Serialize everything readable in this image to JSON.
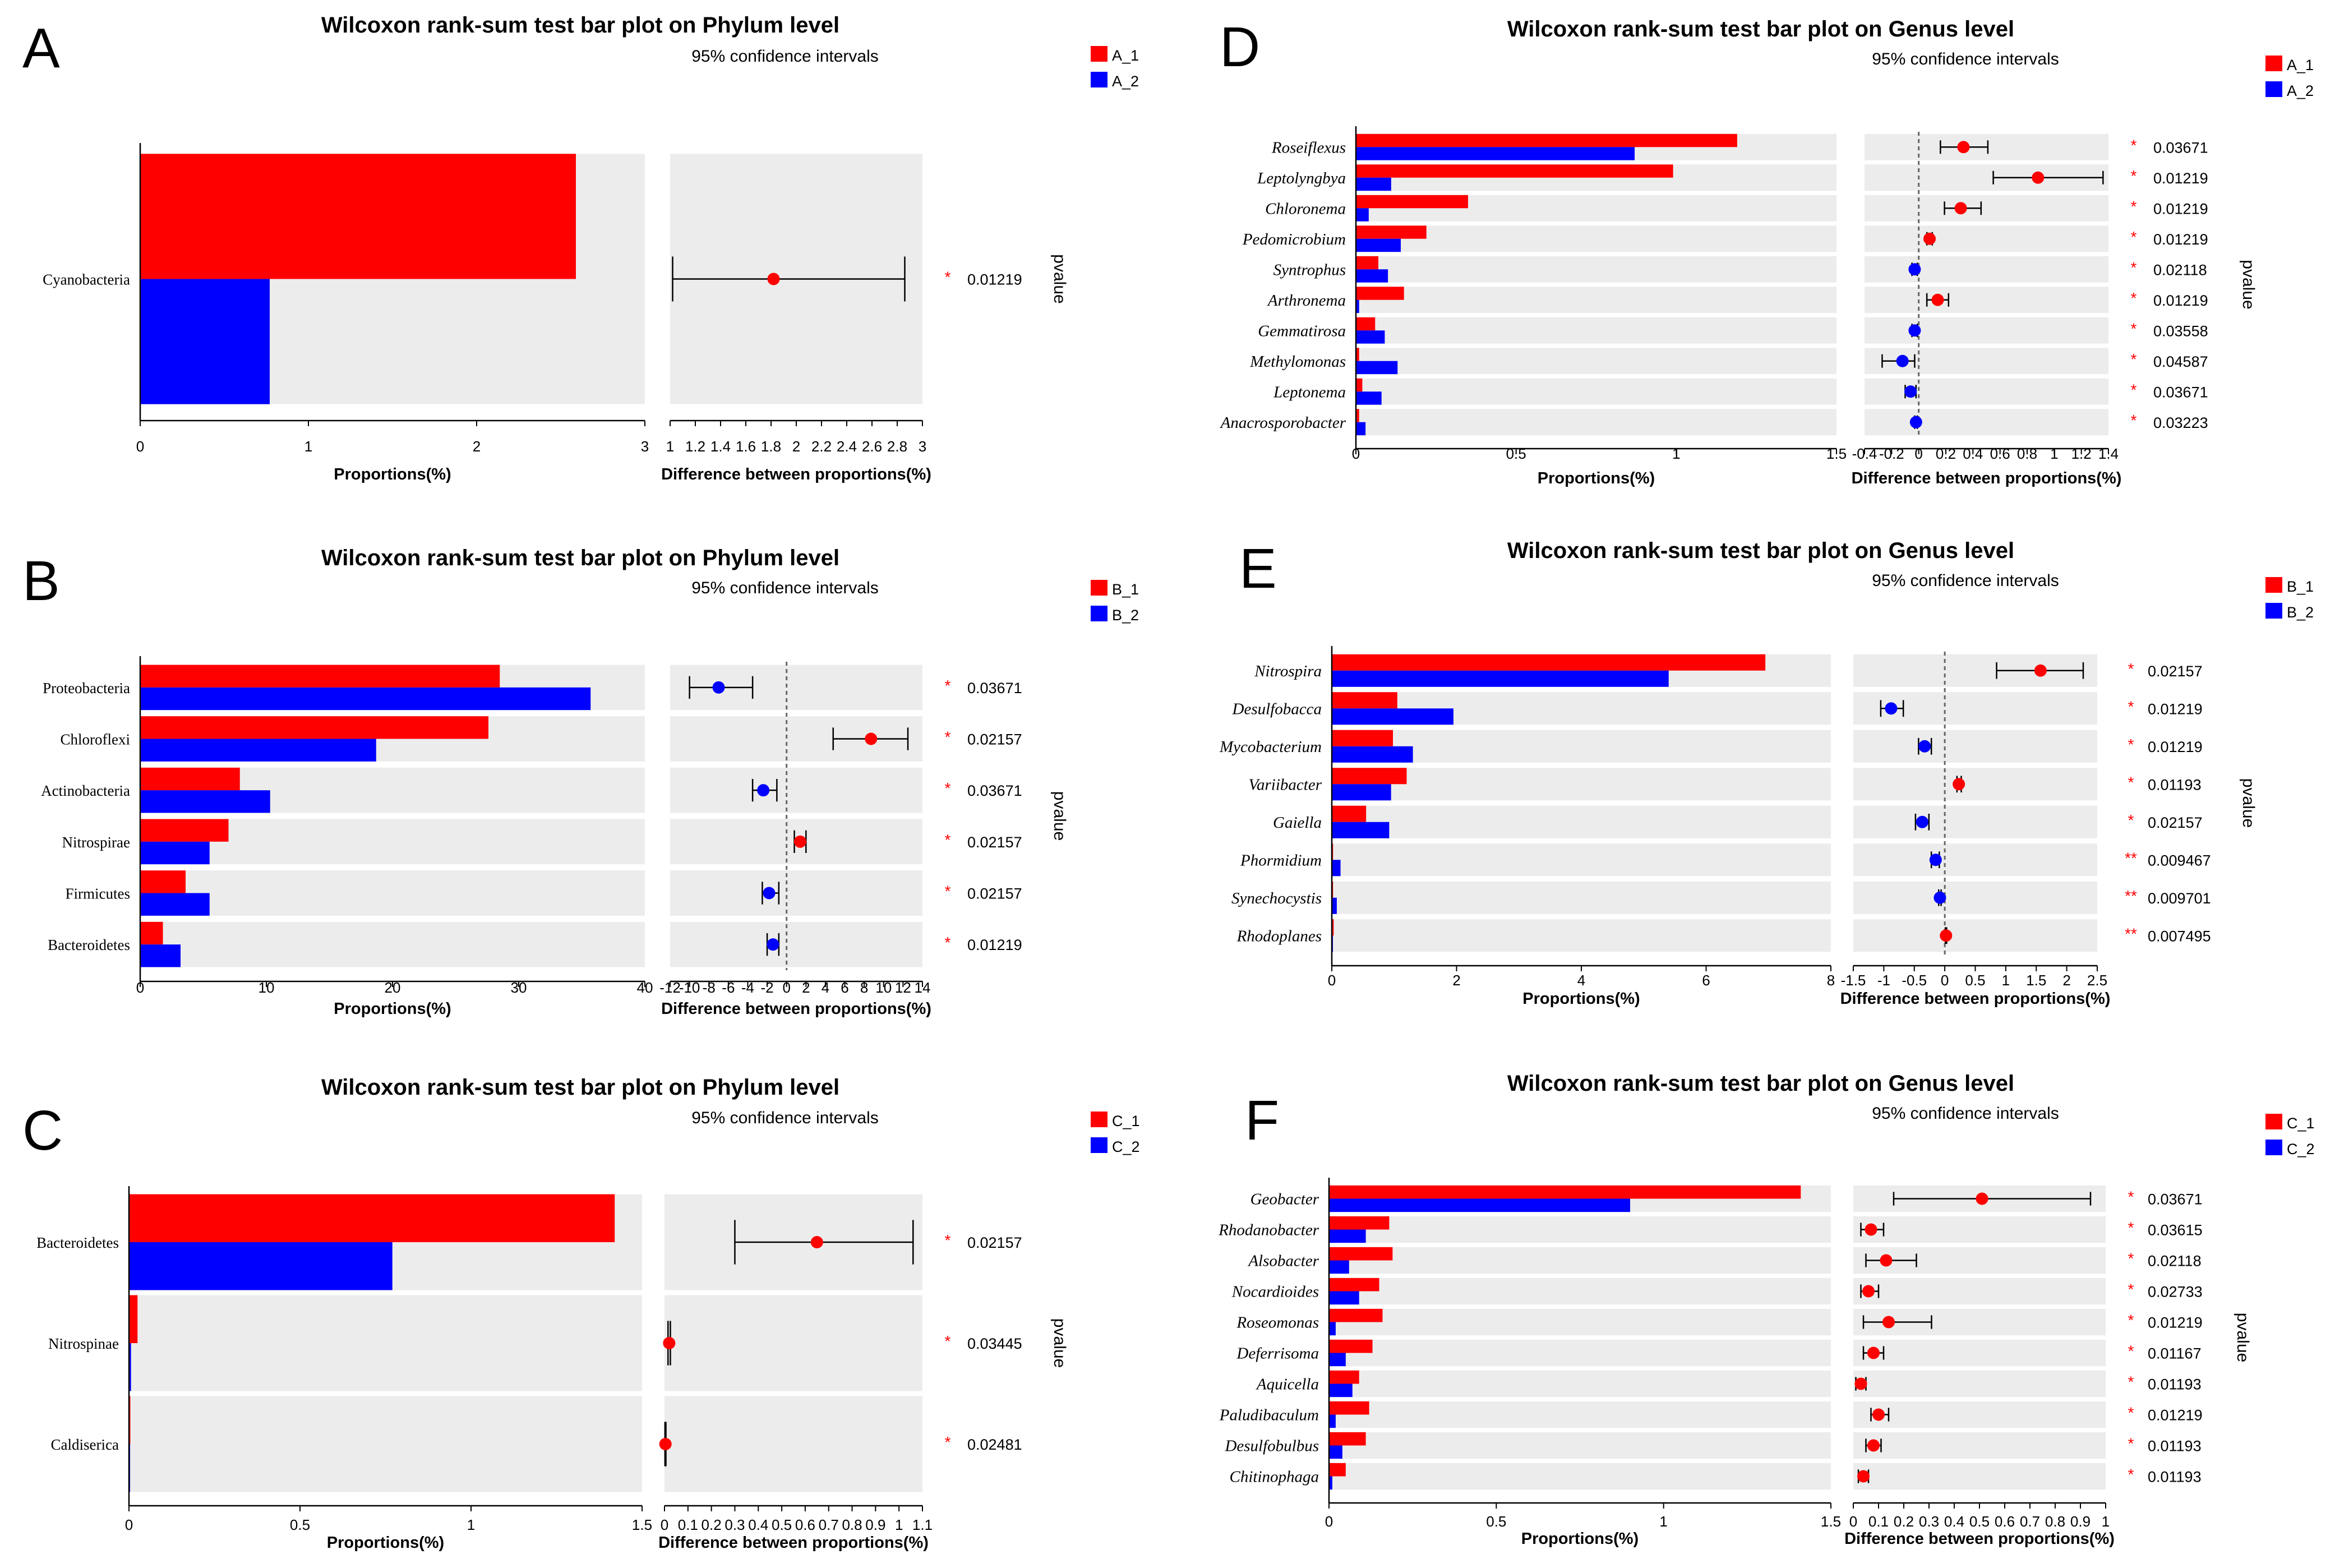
{
  "chart_data": [
    {
      "type": "bar",
      "panel_label": "A",
      "title": "Wilcoxon rank-sum test bar plot on Phylum level",
      "subtitle": "95% confidence intervals",
      "italic_taxa": false,
      "categories": [
        "Cyanobacteria"
      ],
      "series": [
        {
          "name": "A_1",
          "color": "#ff0000",
          "values": [
            2.59
          ]
        },
        {
          "name": "A_2",
          "color": "#0000ff",
          "values": [
            0.77
          ]
        }
      ],
      "xlabel": "Proportions(%)",
      "xlim": [
        0,
        3
      ],
      "xticks": [
        "0",
        "1",
        "2",
        "3"
      ],
      "diff": {
        "xlabel": "Difference between proportions(%)",
        "xlim": [
          1,
          3
        ],
        "xticks": [
          "1",
          "1.2",
          "1.4",
          "1.6",
          "1.8",
          "2",
          "2.2",
          "2.4",
          "2.6",
          "2.8",
          "3"
        ],
        "zero_line": false,
        "points": [
          {
            "estimate": 1.82,
            "lower": 1.02,
            "upper": 2.86,
            "group": "A_1"
          }
        ]
      },
      "pvalues": [
        "0.01219"
      ],
      "stars": [
        "*"
      ],
      "pvalue_label": "pvalue"
    },
    {
      "type": "bar",
      "panel_label": "B",
      "title": "Wilcoxon rank-sum test bar plot on Phylum level",
      "subtitle": "95% confidence intervals",
      "italic_taxa": false,
      "categories": [
        "Proteobacteria",
        "Chloroflexi",
        "Actinobacteria",
        "Nitrospirae",
        "Firmicutes",
        "Bacteroidetes"
      ],
      "series": [
        {
          "name": "B_1",
          "color": "#ff0000",
          "values": [
            28.5,
            27.6,
            7.9,
            7.0,
            3.6,
            1.8
          ]
        },
        {
          "name": "B_2",
          "color": "#0000ff",
          "values": [
            35.7,
            18.7,
            10.3,
            5.5,
            5.5,
            3.2
          ]
        }
      ],
      "xlabel": "Proportions(%)",
      "xlim": [
        0,
        40
      ],
      "xticks": [
        "0",
        "10",
        "20",
        "30",
        "40"
      ],
      "diff": {
        "xlabel": "Difference between proportions(%)",
        "xlim": [
          -12,
          14
        ],
        "xticks": [
          "-12",
          "-10",
          "-8",
          "-6",
          "-4",
          "-2",
          "0",
          "2",
          "4",
          "6",
          "8",
          "10",
          "12",
          "14"
        ],
        "zero_line": true,
        "points": [
          {
            "estimate": -7.0,
            "lower": -10.0,
            "upper": -3.5,
            "group": "B_2"
          },
          {
            "estimate": 8.7,
            "lower": 4.8,
            "upper": 12.5,
            "group": "B_1"
          },
          {
            "estimate": -2.4,
            "lower": -3.5,
            "upper": -1.0,
            "group": "B_2"
          },
          {
            "estimate": 1.4,
            "lower": 0.8,
            "upper": 2.0,
            "group": "B_1"
          },
          {
            "estimate": -1.8,
            "lower": -2.5,
            "upper": -0.8,
            "group": "B_2"
          },
          {
            "estimate": -1.4,
            "lower": -2.0,
            "upper": -0.8,
            "group": "B_2"
          }
        ]
      },
      "pvalues": [
        "0.03671",
        "0.02157",
        "0.03671",
        "0.02157",
        "0.02157",
        "0.01219"
      ],
      "stars": [
        "*",
        "*",
        "*",
        "*",
        "*",
        "*"
      ],
      "pvalue_label": "pvalue"
    },
    {
      "type": "bar",
      "panel_label": "C",
      "title": "Wilcoxon rank-sum test bar plot on Phylum level",
      "subtitle": "95% confidence intervals",
      "italic_taxa": false,
      "categories": [
        "Bacteroidetes",
        "Nitrospinae",
        "Caldiserica"
      ],
      "series": [
        {
          "name": "C_1",
          "color": "#ff0000",
          "values": [
            1.42,
            0.025,
            0.004
          ]
        },
        {
          "name": "C_2",
          "color": "#0000ff",
          "values": [
            0.77,
            0.006,
            0.001
          ]
        }
      ],
      "xlabel": "Proportions(%)",
      "xlim": [
        0,
        1.5
      ],
      "xticks": [
        "0",
        "0.5",
        "1",
        "1.5"
      ],
      "diff": {
        "xlabel": "Difference between proportions(%)",
        "xlim": [
          0,
          1.1
        ],
        "xticks": [
          "0",
          "0.1",
          "0.2",
          "0.3",
          "0.4",
          "0.5",
          "0.6",
          "0.7",
          "0.8",
          "0.9",
          "1",
          "1.1"
        ],
        "zero_line": false,
        "points": [
          {
            "estimate": 0.65,
            "lower": 0.3,
            "upper": 1.06,
            "group": "C_1"
          },
          {
            "estimate": 0.02,
            "lower": 0.015,
            "upper": 0.025,
            "group": "C_1"
          },
          {
            "estimate": 0.004,
            "lower": 0.002,
            "upper": 0.006,
            "group": "C_1"
          }
        ]
      },
      "pvalues": [
        "0.02157",
        "0.03445",
        "0.02481"
      ],
      "stars": [
        "*",
        "*",
        "*"
      ],
      "pvalue_label": "pvalue"
    },
    {
      "type": "bar",
      "panel_label": "D",
      "title": "Wilcoxon rank-sum test bar plot on Genus level",
      "subtitle": "95% confidence intervals",
      "italic_taxa": true,
      "categories": [
        "Roseiflexus",
        "Leptolyngbya",
        "Chloronema",
        "Pedomicrobium",
        "Syntrophus",
        "Arthronema",
        "Gemmatirosa",
        "Methylomonas",
        "Leptonema",
        "Anacrosporobacter"
      ],
      "series": [
        {
          "name": "A_1",
          "color": "#ff0000",
          "values": [
            1.19,
            0.99,
            0.35,
            0.22,
            0.07,
            0.15,
            0.06,
            0.01,
            0.02,
            0.01
          ]
        },
        {
          "name": "A_2",
          "color": "#0000ff",
          "values": [
            0.87,
            0.11,
            0.04,
            0.14,
            0.1,
            0.01,
            0.09,
            0.13,
            0.08,
            0.03
          ]
        }
      ],
      "xlabel": "Proportions(%)",
      "xlim": [
        0,
        1.5
      ],
      "xticks": [
        "0",
        "0.5",
        "1",
        "1.5"
      ],
      "diff": {
        "xlabel": "Difference between proportions(%)",
        "xlim": [
          -0.4,
          1.4
        ],
        "xticks": [
          "-0.4",
          "-0.2",
          "0",
          "0.2",
          "0.4",
          "0.6",
          "0.8",
          "1",
          "1.2",
          "1.4"
        ],
        "zero_line": true,
        "points": [
          {
            "estimate": 0.33,
            "lower": 0.16,
            "upper": 0.51,
            "group": "A_1"
          },
          {
            "estimate": 0.88,
            "lower": 0.55,
            "upper": 1.36,
            "group": "A_1"
          },
          {
            "estimate": 0.31,
            "lower": 0.19,
            "upper": 0.46,
            "group": "A_1"
          },
          {
            "estimate": 0.08,
            "lower": 0.06,
            "upper": 0.1,
            "group": "A_1"
          },
          {
            "estimate": -0.03,
            "lower": -0.05,
            "upper": -0.01,
            "group": "A_2"
          },
          {
            "estimate": 0.14,
            "lower": 0.06,
            "upper": 0.22,
            "group": "A_1"
          },
          {
            "estimate": -0.03,
            "lower": -0.05,
            "upper": -0.01,
            "group": "A_2"
          },
          {
            "estimate": -0.12,
            "lower": -0.27,
            "upper": -0.03,
            "group": "A_2"
          },
          {
            "estimate": -0.06,
            "lower": -0.1,
            "upper": -0.02,
            "group": "A_2"
          },
          {
            "estimate": -0.02,
            "lower": -0.03,
            "upper": -0.01,
            "group": "A_2"
          }
        ]
      },
      "pvalues": [
        "0.03671",
        "0.01219",
        "0.01219",
        "0.01219",
        "0.02118",
        "0.01219",
        "0.03558",
        "0.04587",
        "0.03671",
        "0.03223"
      ],
      "stars": [
        "*",
        "*",
        "*",
        "*",
        "*",
        "*",
        "*",
        "*",
        "*",
        "*"
      ],
      "pvalue_label": "pvalue"
    },
    {
      "type": "bar",
      "panel_label": "E",
      "title": "Wilcoxon rank-sum test bar plot on Genus level",
      "subtitle": "95% confidence intervals",
      "italic_taxa": true,
      "categories": [
        "Nitrospira",
        "Desulfobacca",
        "Mycobacterium",
        "Variibacter",
        "Gaiella",
        "Phormidium",
        "Synechocystis",
        "Rhodoplanes"
      ],
      "series": [
        {
          "name": "B_1",
          "color": "#ff0000",
          "values": [
            6.95,
            1.05,
            0.98,
            1.2,
            0.55,
            0.02,
            0.02,
            0.03
          ]
        },
        {
          "name": "B_2",
          "color": "#0000ff",
          "values": [
            5.4,
            1.95,
            1.3,
            0.95,
            0.92,
            0.14,
            0.08,
            0.01
          ]
        }
      ],
      "xlabel": "Proportions(%)",
      "xlim": [
        0,
        8
      ],
      "xticks": [
        "0",
        "2",
        "4",
        "6",
        "8"
      ],
      "diff": {
        "xlabel": "Difference between proportions(%)",
        "xlim": [
          -1.5,
          2.5
        ],
        "xticks": [
          "-1.5",
          "-1",
          "-0.5",
          "0",
          "0.5",
          "1",
          "1.5",
          "2",
          "2.5"
        ],
        "zero_line": true,
        "points": [
          {
            "estimate": 1.57,
            "lower": 0.85,
            "upper": 2.27,
            "group": "B_1"
          },
          {
            "estimate": -0.88,
            "lower": -1.05,
            "upper": -0.68,
            "group": "B_2"
          },
          {
            "estimate": -0.33,
            "lower": -0.43,
            "upper": -0.22,
            "group": "B_2"
          },
          {
            "estimate": 0.23,
            "lower": 0.2,
            "upper": 0.27,
            "group": "B_1"
          },
          {
            "estimate": -0.37,
            "lower": -0.48,
            "upper": -0.26,
            "group": "B_2"
          },
          {
            "estimate": -0.15,
            "lower": -0.22,
            "upper": -0.09,
            "group": "B_2"
          },
          {
            "estimate": -0.08,
            "lower": -0.1,
            "upper": -0.06,
            "group": "B_2"
          },
          {
            "estimate": 0.02,
            "lower": 0.01,
            "upper": 0.03,
            "group": "B_1"
          }
        ]
      },
      "pvalues": [
        "0.02157",
        "0.01219",
        "0.01219",
        "0.01193",
        "0.02157",
        "0.009467",
        "0.009701",
        "0.007495"
      ],
      "stars": [
        "*",
        "*",
        "*",
        "*",
        "*",
        "**",
        "**",
        "**"
      ],
      "pvalue_label": "pvalue"
    },
    {
      "type": "bar",
      "panel_label": "F",
      "title": "Wilcoxon rank-sum test bar plot on Genus level",
      "subtitle": "95% confidence intervals",
      "italic_taxa": true,
      "categories": [
        "Geobacter",
        "Rhodanobacter",
        "Alsobacter",
        "Nocardioides",
        "Roseomonas",
        "Deferrisoma",
        "Aquicella",
        "Paludibaculum",
        "Desulfobulbus",
        "Chitinophaga"
      ],
      "series": [
        {
          "name": "C_1",
          "color": "#ff0000",
          "values": [
            1.41,
            0.18,
            0.19,
            0.15,
            0.16,
            0.13,
            0.09,
            0.12,
            0.11,
            0.05
          ]
        },
        {
          "name": "C_2",
          "color": "#0000ff",
          "values": [
            0.9,
            0.11,
            0.06,
            0.09,
            0.02,
            0.05,
            0.07,
            0.02,
            0.04,
            0.01
          ]
        }
      ],
      "xlabel": "Proportions(%)",
      "xlim": [
        0,
        1.5
      ],
      "xticks": [
        "0",
        "0.5",
        "1",
        "1.5"
      ],
      "diff": {
        "xlabel": "Difference between proportions(%)",
        "xlim": [
          0,
          1
        ],
        "xticks": [
          "0",
          "0.1",
          "0.2",
          "0.3",
          "0.4",
          "0.5",
          "0.6",
          "0.7",
          "0.8",
          "0.9",
          "1"
        ],
        "zero_line": false,
        "points": [
          {
            "estimate": 0.51,
            "lower": 0.16,
            "upper": 0.94,
            "group": "C_1"
          },
          {
            "estimate": 0.07,
            "lower": 0.03,
            "upper": 0.12,
            "group": "C_1"
          },
          {
            "estimate": 0.13,
            "lower": 0.05,
            "upper": 0.25,
            "group": "C_1"
          },
          {
            "estimate": 0.06,
            "lower": 0.03,
            "upper": 0.1,
            "group": "C_1"
          },
          {
            "estimate": 0.14,
            "lower": 0.04,
            "upper": 0.31,
            "group": "C_1"
          },
          {
            "estimate": 0.08,
            "lower": 0.04,
            "upper": 0.12,
            "group": "C_1"
          },
          {
            "estimate": 0.03,
            "lower": 0.01,
            "upper": 0.05,
            "group": "C_1"
          },
          {
            "estimate": 0.1,
            "lower": 0.07,
            "upper": 0.14,
            "group": "C_1"
          },
          {
            "estimate": 0.08,
            "lower": 0.05,
            "upper": 0.11,
            "group": "C_1"
          },
          {
            "estimate": 0.04,
            "lower": 0.02,
            "upper": 0.06,
            "group": "C_1"
          }
        ]
      },
      "pvalues": [
        "0.03671",
        "0.03615",
        "0.02118",
        "0.02733",
        "0.01219",
        "0.01167",
        "0.01193",
        "0.01219",
        "0.01193",
        "0.01193"
      ],
      "stars": [
        "*",
        "*",
        "*",
        "*",
        "*",
        "*",
        "*",
        "*",
        "*",
        "*"
      ],
      "pvalue_label": "pvalue"
    }
  ]
}
